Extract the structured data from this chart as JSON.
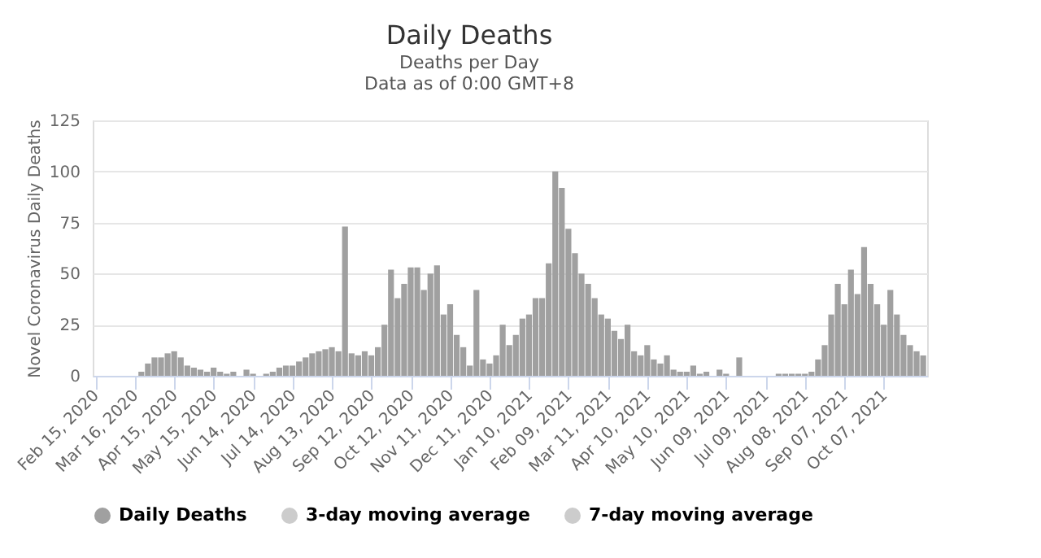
{
  "chart_data": {
    "type": "bar",
    "title": "Daily Deaths",
    "subtitle": "Deaths per Day\nData as of 0:00 GMT+8",
    "ylabel": "Novel Coronavirus Daily Deaths",
    "x": [
      "2020-02-15",
      "2020-02-20",
      "2020-02-25",
      "2020-03-01",
      "2020-03-06",
      "2020-03-11",
      "2020-03-16",
      "2020-03-21",
      "2020-03-26",
      "2020-03-31",
      "2020-04-05",
      "2020-04-10",
      "2020-04-15",
      "2020-04-20",
      "2020-04-25",
      "2020-04-30",
      "2020-05-05",
      "2020-05-10",
      "2020-05-15",
      "2020-05-20",
      "2020-05-25",
      "2020-05-30",
      "2020-06-04",
      "2020-06-09",
      "2020-06-14",
      "2020-06-19",
      "2020-06-24",
      "2020-06-29",
      "2020-07-04",
      "2020-07-09",
      "2020-07-14",
      "2020-07-19",
      "2020-07-24",
      "2020-07-29",
      "2020-08-03",
      "2020-08-08",
      "2020-08-13",
      "2020-08-18",
      "2020-08-23",
      "2020-08-28",
      "2020-09-02",
      "2020-09-07",
      "2020-09-12",
      "2020-09-17",
      "2020-09-22",
      "2020-09-27",
      "2020-10-02",
      "2020-10-07",
      "2020-10-12",
      "2020-10-17",
      "2020-10-22",
      "2020-10-27",
      "2020-11-01",
      "2020-11-06",
      "2020-11-11",
      "2020-11-16",
      "2020-11-21",
      "2020-11-26",
      "2020-12-01",
      "2020-12-06",
      "2020-12-11",
      "2020-12-16",
      "2020-12-21",
      "2020-12-26",
      "2020-12-31",
      "2021-01-05",
      "2021-01-10",
      "2021-01-15",
      "2021-01-20",
      "2021-01-25",
      "2021-01-30",
      "2021-02-04",
      "2021-02-09",
      "2021-02-14",
      "2021-02-19",
      "2021-02-24",
      "2021-03-01",
      "2021-03-06",
      "2021-03-11",
      "2021-03-16",
      "2021-03-21",
      "2021-03-26",
      "2021-03-31",
      "2021-04-05",
      "2021-04-10",
      "2021-04-15",
      "2021-04-20",
      "2021-04-25",
      "2021-04-30",
      "2021-05-05",
      "2021-05-10",
      "2021-05-15",
      "2021-05-20",
      "2021-05-25",
      "2021-05-30",
      "2021-06-04",
      "2021-06-09",
      "2021-06-14",
      "2021-06-19",
      "2021-06-24",
      "2021-06-29",
      "2021-07-04",
      "2021-07-09",
      "2021-07-14",
      "2021-07-19",
      "2021-07-24",
      "2021-07-29",
      "2021-08-03",
      "2021-08-08",
      "2021-08-13",
      "2021-08-18",
      "2021-08-23",
      "2021-08-28",
      "2021-09-02",
      "2021-09-07",
      "2021-09-12",
      "2021-09-17",
      "2021-09-22",
      "2021-09-27",
      "2021-10-02",
      "2021-10-07",
      "2021-10-12",
      "2021-10-17",
      "2021-10-22",
      "2021-10-27",
      "2021-11-01",
      "2021-11-06"
    ],
    "series": [
      {
        "name": "Daily Deaths",
        "color": "#a0a0a0",
        "values": [
          0,
          0,
          0,
          0,
          0,
          0,
          0,
          2,
          6,
          9,
          9,
          11,
          12,
          9,
          5,
          4,
          3,
          2,
          4,
          2,
          1,
          2,
          0,
          3,
          1,
          0,
          1,
          2,
          4,
          5,
          5,
          7,
          9,
          11,
          12,
          13,
          14,
          12,
          73,
          11,
          10,
          12,
          10,
          14,
          25,
          52,
          38,
          45,
          53,
          53,
          42,
          50,
          54,
          30,
          35,
          20,
          14,
          5,
          42,
          8,
          6,
          10,
          25,
          15,
          20,
          28,
          30,
          38,
          38,
          55,
          100,
          92,
          72,
          60,
          50,
          45,
          38,
          30,
          28,
          22,
          18,
          25,
          12,
          10,
          15,
          8,
          6,
          10,
          3,
          2,
          2,
          5,
          1,
          2,
          0,
          3,
          1,
          0,
          9,
          0,
          0,
          0,
          0,
          0,
          1,
          1,
          1,
          1,
          1,
          2,
          8,
          15,
          30,
          45,
          35,
          52,
          40,
          63,
          45,
          35,
          25,
          42,
          30,
          20,
          15,
          12,
          10
        ]
      },
      {
        "name": "3-day moving average",
        "color": "#cccccc",
        "values": [
          null,
          null,
          null,
          null,
          null,
          null,
          null,
          null,
          null,
          null,
          null,
          null,
          null,
          null,
          null,
          null,
          null,
          null,
          null,
          null,
          null,
          null,
          null,
          null,
          null,
          null,
          null,
          null,
          null,
          null,
          null,
          null,
          null,
          null,
          null,
          null,
          null,
          null,
          null,
          null,
          null,
          null,
          null,
          null,
          null,
          null,
          null,
          null,
          null,
          null,
          null,
          null,
          null,
          null,
          null,
          null,
          null,
          null,
          null,
          null,
          null,
          null,
          null,
          null,
          null,
          null,
          null,
          null,
          null,
          null,
          null,
          null,
          null,
          null,
          null,
          null,
          null,
          null,
          null,
          null,
          null,
          null,
          null,
          null,
          null,
          null,
          null,
          null,
          null,
          null,
          null,
          null,
          null,
          null,
          null,
          null,
          null,
          null,
          null,
          null,
          null,
          null,
          null,
          null,
          null,
          null,
          null,
          null,
          null,
          null,
          null,
          null,
          null,
          null,
          null,
          null,
          null,
          null,
          null,
          null,
          null,
          null,
          null,
          null,
          null,
          null,
          null
        ]
      },
      {
        "name": "7-day moving average",
        "color": "#cccccc",
        "values": [
          null,
          null,
          null,
          null,
          null,
          null,
          null,
          null,
          null,
          null,
          null,
          null,
          null,
          null,
          null,
          null,
          null,
          null,
          null,
          null,
          null,
          null,
          null,
          null,
          null,
          null,
          null,
          null,
          null,
          null,
          null,
          null,
          null,
          null,
          null,
          null,
          null,
          null,
          null,
          null,
          null,
          null,
          null,
          null,
          null,
          null,
          null,
          null,
          null,
          null,
          null,
          null,
          null,
          null,
          null,
          null,
          null,
          null,
          null,
          null,
          null,
          null,
          null,
          null,
          null,
          null,
          null,
          null,
          null,
          null,
          null,
          null,
          null,
          null,
          null,
          null,
          null,
          null,
          null,
          null,
          null,
          null,
          null,
          null,
          null,
          null,
          null,
          null,
          null,
          null,
          null,
          null,
          null,
          null,
          null,
          null,
          null,
          null,
          null,
          null,
          null,
          null,
          null,
          null,
          null,
          null,
          null,
          null,
          null,
          null,
          null,
          null,
          null,
          null,
          null,
          null,
          null,
          null,
          null,
          null,
          null,
          null,
          null,
          null,
          null,
          null,
          null
        ]
      }
    ],
    "xlim": [
      "2020-02-13",
      "2021-11-09"
    ],
    "xticks": [
      {
        "value": "2020-02-15",
        "label": "Feb 15, 2020"
      },
      {
        "value": "2020-03-16",
        "label": "Mar 16, 2020"
      },
      {
        "value": "2020-04-15",
        "label": "Apr 15, 2020"
      },
      {
        "value": "2020-05-15",
        "label": "May 15, 2020"
      },
      {
        "value": "2020-06-14",
        "label": "Jun 14, 2020"
      },
      {
        "value": "2020-07-14",
        "label": "Jul 14, 2020"
      },
      {
        "value": "2020-08-13",
        "label": "Aug 13, 2020"
      },
      {
        "value": "2020-09-12",
        "label": "Sep 12, 2020"
      },
      {
        "value": "2020-10-12",
        "label": "Oct 12, 2020"
      },
      {
        "value": "2020-11-11",
        "label": "Nov 11, 2020"
      },
      {
        "value": "2020-12-11",
        "label": "Dec 11, 2020"
      },
      {
        "value": "2021-01-10",
        "label": "Jan 10, 2021"
      },
      {
        "value": "2021-02-09",
        "label": "Feb 09, 2021"
      },
      {
        "value": "2021-03-11",
        "label": "Mar 11, 2021"
      },
      {
        "value": "2021-04-10",
        "label": "Apr 10, 2021"
      },
      {
        "value": "2021-05-10",
        "label": "May 10, 2021"
      },
      {
        "value": "2021-06-09",
        "label": "Jun 09, 2021"
      },
      {
        "value": "2021-07-09",
        "label": "Jul 09, 2021"
      },
      {
        "value": "2021-08-08",
        "label": "Aug 08, 2021"
      },
      {
        "value": "2021-09-07",
        "label": "Sep 07, 2021"
      },
      {
        "value": "2021-10-07",
        "label": "Oct 07, 2021"
      }
    ],
    "ylim": [
      0,
      125
    ],
    "yticks": [
      0,
      25,
      50,
      75,
      100,
      125
    ],
    "grid": "y",
    "legend": "bottom"
  }
}
